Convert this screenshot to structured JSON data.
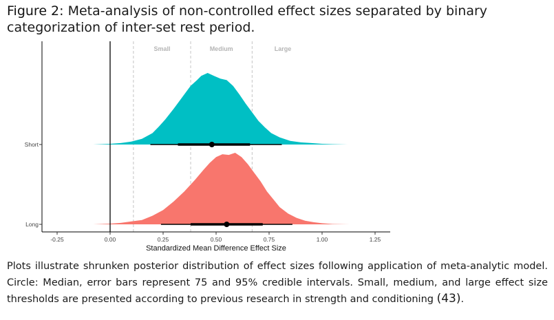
{
  "figure": {
    "label": "Figure 2:",
    "title": " Meta-analysis of non-controlled effect sizes separated by binary categorization of inter-set rest period.",
    "caption_text": "Plots illustrate shrunken posterior distribution of effect sizes following application of meta-analytic model. Circle: Median, error bars represent 75 and 95% credible intervals. Small, medium, and large effect size thresholds are presented according to previous research in strength and conditioning ",
    "caption_ref": "(43)",
    "caption_end": "."
  },
  "chart_data": {
    "type": "density-interval",
    "xlabel": "Standardized Mean Difference Effect Size",
    "ylabel": "",
    "xlim": [
      -0.35,
      1.32
    ],
    "x_ticks": [
      -0.25,
      0.0,
      0.25,
      0.5,
      0.75,
      1.0,
      1.25
    ],
    "x_tick_labels": [
      "-0.25",
      "0.00",
      "0.25",
      "0.50",
      "0.75",
      "1.00",
      "1.25"
    ],
    "zero_line": 0.0,
    "thresholds": [
      {
        "x": 0.11,
        "label": "Small"
      },
      {
        "x": 0.38,
        "label": "Medium"
      },
      {
        "x": 0.67,
        "label": "Large"
      }
    ],
    "categories": [
      "Short",
      "Long"
    ],
    "series": [
      {
        "name": "Short",
        "color": "#00BFC4",
        "median": 0.48,
        "ci75": [
          0.32,
          0.66
        ],
        "ci95": [
          0.19,
          0.81
        ],
        "density": {
          "x": [
            -0.08,
            0.0,
            0.05,
            0.1,
            0.15,
            0.2,
            0.23,
            0.26,
            0.3,
            0.34,
            0.38,
            0.41,
            0.43,
            0.46,
            0.49,
            0.52,
            0.55,
            0.58,
            0.61,
            0.64,
            0.67,
            0.7,
            0.73,
            0.76,
            0.8,
            0.85,
            0.9,
            0.95,
            1.0,
            1.05,
            1.12
          ],
          "y": [
            0.0,
            0.01,
            0.02,
            0.04,
            0.08,
            0.16,
            0.25,
            0.35,
            0.5,
            0.66,
            0.82,
            0.9,
            0.96,
            1.0,
            0.96,
            0.92,
            0.9,
            0.82,
            0.7,
            0.57,
            0.45,
            0.33,
            0.24,
            0.16,
            0.1,
            0.05,
            0.03,
            0.02,
            0.01,
            0.005,
            0.0
          ]
        }
      },
      {
        "name": "Long",
        "color": "#F8766D",
        "median": 0.55,
        "ci75": [
          0.38,
          0.72
        ],
        "ci95": [
          0.24,
          0.86
        ],
        "density": {
          "x": [
            -0.08,
            0.0,
            0.05,
            0.1,
            0.15,
            0.2,
            0.25,
            0.3,
            0.35,
            0.4,
            0.44,
            0.47,
            0.5,
            0.53,
            0.56,
            0.59,
            0.62,
            0.65,
            0.68,
            0.71,
            0.74,
            0.77,
            0.8,
            0.84,
            0.88,
            0.92,
            0.96,
            1.0,
            1.05,
            1.13
          ],
          "y": [
            0.0,
            0.01,
            0.02,
            0.04,
            0.06,
            0.12,
            0.2,
            0.32,
            0.46,
            0.62,
            0.76,
            0.86,
            0.94,
            0.98,
            0.97,
            1.0,
            0.94,
            0.84,
            0.72,
            0.6,
            0.46,
            0.35,
            0.24,
            0.15,
            0.09,
            0.05,
            0.03,
            0.015,
            0.005,
            0.0
          ]
        }
      }
    ]
  }
}
